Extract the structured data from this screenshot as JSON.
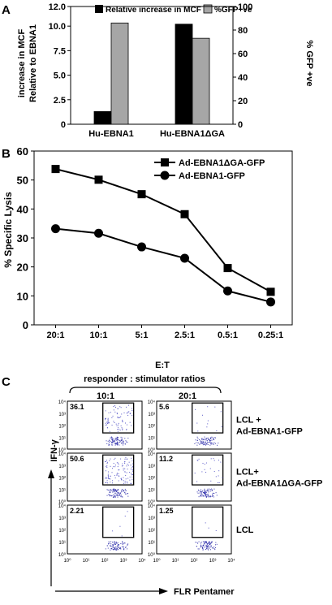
{
  "panels": {
    "A": {
      "letter": "A"
    },
    "B": {
      "letter": "B"
    },
    "C": {
      "letter": "C"
    }
  },
  "chart_data": [
    {
      "type": "bar",
      "panel": "A",
      "categories": [
        "Hu-EBNA1",
        "Hu-EBNA1ΔGA"
      ],
      "series": [
        {
          "name": "Relative increase in MCF",
          "values": [
            1.3,
            10.2
          ],
          "color": "#000000",
          "axis": "left"
        },
        {
          "name": "%GFP+ve",
          "values": [
            86,
            73
          ],
          "color": "#a6a6a6",
          "axis": "right"
        }
      ],
      "ylabel": "Relative to EBNA1",
      "ylabel2": "increase in MCF",
      "y2label": "% GFP +ve",
      "ylim": [
        0,
        12.0
      ],
      "y2lim": [
        0,
        100
      ],
      "yticks": [
        "0",
        "2.5",
        "5.0",
        "7.5",
        "10.0",
        "12.0"
      ],
      "y2ticks": [
        "0",
        "20",
        "40",
        "60",
        "80",
        "100"
      ],
      "legend": "top"
    },
    {
      "type": "line",
      "panel": "B",
      "categories": [
        "20:1",
        "10:1",
        "5:1",
        "2.5:1",
        "0.5:1",
        "0.25:1"
      ],
      "series": [
        {
          "name": "Ad-EBNA1ΔGA-GFP",
          "values": [
            53.8,
            50.1,
            45.1,
            38.2,
            19.6,
            11.4
          ],
          "marker": "square"
        },
        {
          "name": "Ad-EBNA1-GFP",
          "values": [
            33.2,
            31.6,
            26.9,
            23.0,
            11.7,
            7.9
          ],
          "marker": "circle"
        }
      ],
      "xlabel": "E:T",
      "ylabel": "% Specific Lysis",
      "ylim": [
        0,
        60
      ],
      "yticks": [
        "0",
        "10",
        "20",
        "30",
        "40",
        "50",
        "60"
      ],
      "legend": "top-right",
      "grid": false
    },
    {
      "type": "scatter",
      "panel": "C",
      "header": "responder : stimulator ratios",
      "columns": [
        "10:1",
        "20:1"
      ],
      "rows": [
        {
          "label_lines": [
            "LCL +",
            "Ad-EBNA1-GFP"
          ],
          "percents": [
            "36.1",
            "5.6"
          ]
        },
        {
          "label_lines": [
            "LCL+",
            "Ad-EBNA1ΔGA-GFP"
          ],
          "percents": [
            "50.6",
            "11.2"
          ]
        },
        {
          "label_lines": [
            "LCL"
          ],
          "percents": [
            "2.21",
            "1.25"
          ]
        }
      ],
      "xlabel": "FLR Pentamer",
      "ylabel": "IFN-γ",
      "axis_ticks": [
        "10⁰",
        "10¹",
        "10²",
        "10³",
        "10⁴"
      ],
      "axis_range_log10": [
        0,
        4
      ]
    }
  ]
}
